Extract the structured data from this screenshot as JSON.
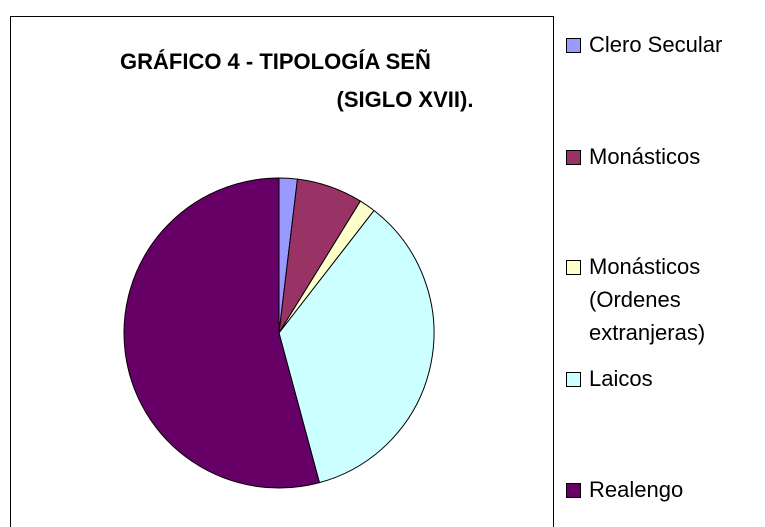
{
  "chart_data": {
    "type": "pie",
    "title": [
      "GRÁFICO 4 - TIPOLOGÍA SEÑ",
      "(SIGLO XVII)."
    ],
    "categories": [
      "Clero Secular",
      "Monásticos",
      "Monásticos (Ordenes extranjeras)",
      "Laicos",
      "Realengo"
    ],
    "values": [
      1.9,
      6.9,
      1.7,
      35.3,
      54.2
    ],
    "colors": [
      "#9999ff",
      "#993366",
      "#ffffcc",
      "#ccffff",
      "#660066"
    ],
    "legend": "right"
  }
}
